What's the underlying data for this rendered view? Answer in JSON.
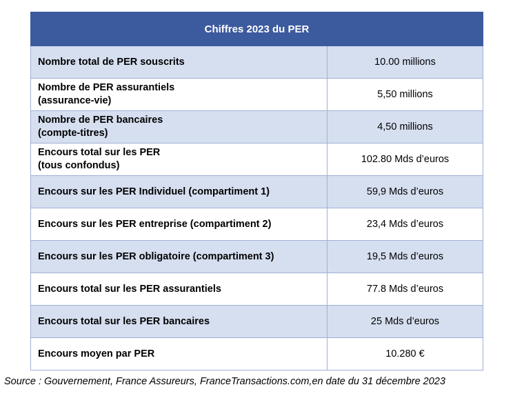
{
  "table": {
    "title": "Chiffres 2023 du PER",
    "rows": [
      {
        "label": [
          "Nombre total de PER souscrits"
        ],
        "value": "10.00 millions"
      },
      {
        "label": [
          "Nombre de PER assurantiels",
          "(assurance-vie)"
        ],
        "value": "5,50 millions"
      },
      {
        "label": [
          "Nombre de PER bancaires",
          "(compte-titres)"
        ],
        "value": "4,50 millions"
      },
      {
        "label": [
          "Encours total sur les PER",
          "(tous confondus)"
        ],
        "value": "102.80 Mds d’euros"
      },
      {
        "label": [
          "Encours sur les PER Individuel (compartiment 1)"
        ],
        "value": "59,9 Mds d’euros"
      },
      {
        "label": [
          "Encours sur les PER entreprise (compartiment 2)"
        ],
        "value": "23,4 Mds d’euros"
      },
      {
        "label": [
          "Encours sur les PER obligatoire (compartiment 3)"
        ],
        "value": "19,5 Mds d’euros"
      },
      {
        "label": [
          "Encours total sur les PER assurantiels"
        ],
        "value": "77.8 Mds d’euros"
      },
      {
        "label": [
          "Encours total sur les PER bancaires"
        ],
        "value": "25 Mds d’euros"
      },
      {
        "label": [
          "Encours moyen par PER"
        ],
        "value": "10.280 €"
      }
    ]
  },
  "source": "Source : Gouvernement, France Assureurs, FranceTransactions.com,en date du 31 décembre 2023",
  "colors": {
    "header_bg": "#3c5a9e",
    "row_alt_bg": "#d6dff0",
    "border": "#9fb0d4"
  }
}
